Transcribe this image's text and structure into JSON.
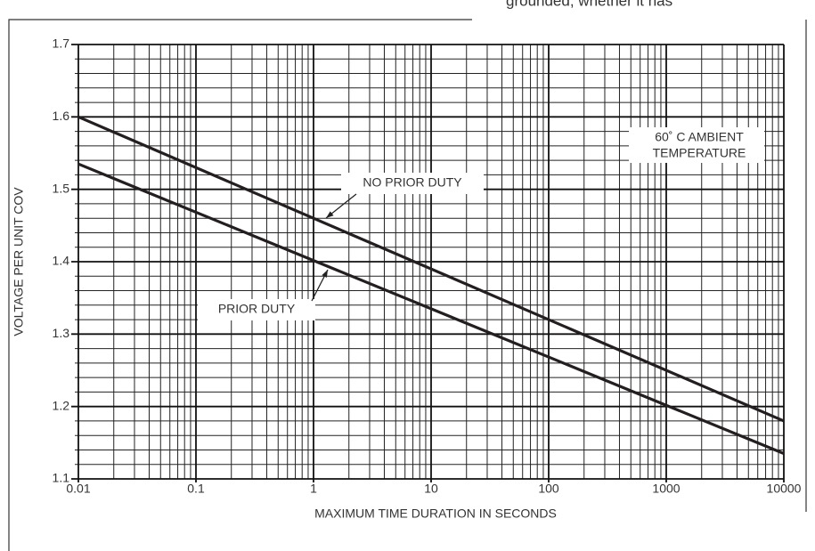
{
  "chart_data": {
    "type": "line",
    "page_text": "grounded, whether it has",
    "xlabel": "MAXIMUM TIME DURATION IN SECONDS",
    "ylabel": "VOLTAGE PER UNIT COV",
    "xscale": "log",
    "grid": true,
    "xlim": [
      0.01,
      10000
    ],
    "ylim": [
      1.1,
      1.7
    ],
    "xticks": [
      0.01,
      0.1,
      1,
      10,
      100,
      1000,
      10000
    ],
    "yticks": [
      1.1,
      1.2,
      1.3,
      1.4,
      1.5,
      1.6,
      1.7
    ],
    "xminor": [
      0.02,
      0.03,
      0.04,
      0.05,
      0.06,
      0.07,
      0.08,
      0.09,
      0.2,
      0.3,
      0.4,
      0.5,
      0.6,
      0.7,
      0.8,
      0.9,
      2,
      3,
      4,
      5,
      6,
      7,
      8,
      9,
      20,
      30,
      40,
      50,
      60,
      70,
      80,
      90,
      200,
      300,
      400,
      500,
      600,
      700,
      800,
      900,
      2000,
      3000,
      4000,
      5000,
      6000,
      7000,
      8000,
      9000
    ],
    "yminor": [
      1.12,
      1.14,
      1.16,
      1.18,
      1.22,
      1.24,
      1.26,
      1.28,
      1.32,
      1.34,
      1.36,
      1.38,
      1.42,
      1.44,
      1.46,
      1.48,
      1.52,
      1.54,
      1.56,
      1.58,
      1.62,
      1.64,
      1.66,
      1.68
    ],
    "series": [
      {
        "name": "NO PRIOR DUTY",
        "color": "#231f20",
        "x": [
          0.01,
          10000
        ],
        "values": [
          1.6,
          1.18
        ]
      },
      {
        "name": "PRIOR DUTY",
        "color": "#231f20",
        "x": [
          0.01,
          10000
        ],
        "values": [
          1.535,
          1.135
        ]
      }
    ],
    "annotations": [
      {
        "lines": [
          "60˚ C AMBIENT",
          "TEMPERATURE"
        ]
      }
    ]
  }
}
